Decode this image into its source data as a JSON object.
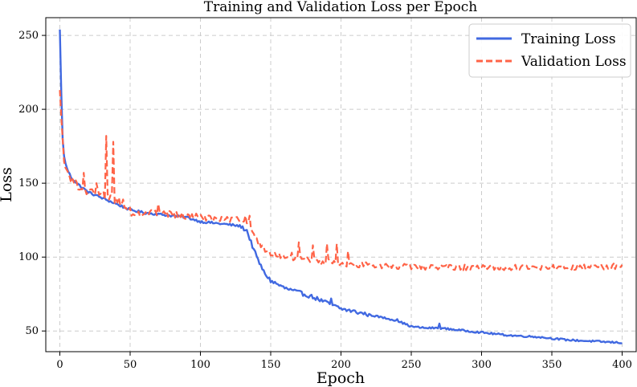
{
  "chart_data": {
    "type": "line",
    "title": "Training and Validation Loss per Epoch",
    "xlabel": "Epoch",
    "ylabel": "Loss",
    "xlim": [
      -10,
      410
    ],
    "ylim": [
      36,
      262
    ],
    "xticks": [
      0,
      50,
      100,
      150,
      200,
      250,
      300,
      350,
      400
    ],
    "yticks": [
      50,
      100,
      150,
      200,
      250
    ],
    "grid": true,
    "legend_position": "top-right",
    "series": [
      {
        "name": "Training Loss",
        "color": "#4169e1",
        "style": "solid",
        "anchors": [
          [
            0,
            254
          ],
          [
            1,
            212
          ],
          [
            2,
            180
          ],
          [
            3,
            168
          ],
          [
            5,
            160
          ],
          [
            8,
            154
          ],
          [
            12,
            150
          ],
          [
            20,
            144
          ],
          [
            30,
            140
          ],
          [
            40,
            136
          ],
          [
            50,
            132
          ],
          [
            60,
            130
          ],
          [
            70,
            129
          ],
          [
            80,
            128
          ],
          [
            90,
            127
          ],
          [
            100,
            124
          ],
          [
            110,
            123
          ],
          [
            120,
            122
          ],
          [
            128,
            121
          ],
          [
            133,
            118
          ],
          [
            136,
            110
          ],
          [
            140,
            100
          ],
          [
            145,
            90
          ],
          [
            150,
            84
          ],
          [
            160,
            79
          ],
          [
            170,
            76
          ],
          [
            180,
            73
          ],
          [
            190,
            69
          ],
          [
            200,
            65
          ],
          [
            210,
            63
          ],
          [
            220,
            61
          ],
          [
            230,
            59
          ],
          [
            240,
            57
          ],
          [
            250,
            53
          ],
          [
            260,
            52
          ],
          [
            270,
            52
          ],
          [
            280,
            51
          ],
          [
            290,
            50
          ],
          [
            300,
            49
          ],
          [
            320,
            47
          ],
          [
            340,
            46
          ],
          [
            360,
            44
          ],
          [
            380,
            43
          ],
          [
            400,
            42
          ]
        ],
        "spikes": [
          [
            193,
            72
          ],
          [
            240,
            58
          ],
          [
            270,
            55
          ]
        ]
      },
      {
        "name": "Validation Loss",
        "color": "#ff6347",
        "style": "dashed",
        "anchors": [
          [
            0,
            213
          ],
          [
            1,
            195
          ],
          [
            3,
            165
          ],
          [
            6,
            155
          ],
          [
            10,
            150
          ],
          [
            20,
            145
          ],
          [
            30,
            142
          ],
          [
            40,
            139
          ],
          [
            50,
            131
          ],
          [
            60,
            130
          ],
          [
            70,
            130
          ],
          [
            80,
            129
          ],
          [
            100,
            127
          ],
          [
            110,
            126
          ],
          [
            120,
            125
          ],
          [
            128,
            125
          ],
          [
            133,
            124
          ],
          [
            136,
            120
          ],
          [
            140,
            112
          ],
          [
            145,
            105
          ],
          [
            150,
            103
          ],
          [
            160,
            100
          ],
          [
            170,
            99
          ],
          [
            180,
            98
          ],
          [
            190,
            97
          ],
          [
            200,
            95
          ],
          [
            210,
            95
          ],
          [
            220,
            95
          ],
          [
            230,
            94
          ],
          [
            240,
            94
          ],
          [
            250,
            93
          ],
          [
            270,
            93
          ],
          [
            300,
            93
          ],
          [
            320,
            93
          ],
          [
            340,
            93
          ],
          [
            360,
            93
          ],
          [
            380,
            93
          ],
          [
            400,
            94
          ]
        ],
        "spikes": [
          [
            33,
            182
          ],
          [
            38,
            178
          ],
          [
            17,
            157
          ],
          [
            26,
            150
          ],
          [
            45,
            139
          ],
          [
            70,
            136
          ],
          [
            125,
            127
          ],
          [
            132,
            128
          ],
          [
            135,
            128
          ],
          [
            145,
            107
          ],
          [
            165,
            103
          ],
          [
            170,
            110
          ],
          [
            180,
            108
          ],
          [
            190,
            109
          ],
          [
            197,
            109
          ],
          [
            205,
            104
          ]
        ]
      }
    ]
  }
}
